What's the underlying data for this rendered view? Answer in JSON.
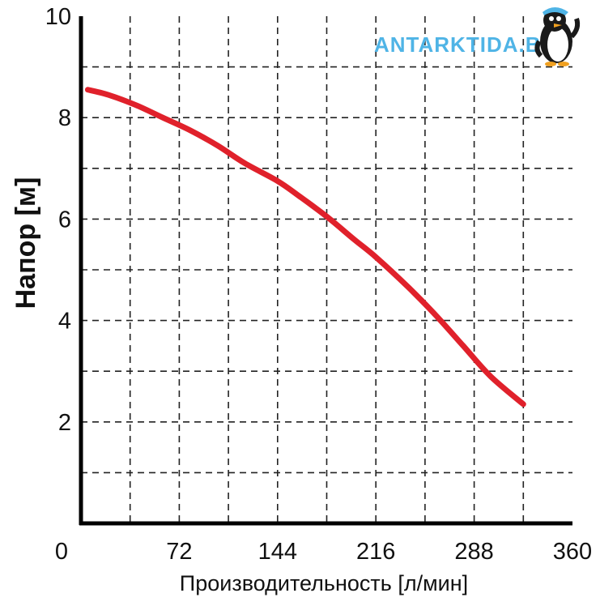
{
  "chart_data": {
    "type": "line",
    "title": "",
    "xlabel": "Производительность [л/мин]",
    "ylabel": "Напор [м]",
    "xlim": [
      0,
      360
    ],
    "ylim": [
      0,
      10
    ],
    "x_ticks": [
      "0",
      "72",
      "144",
      "216",
      "288",
      "360"
    ],
    "y_ticks": [
      "2",
      "4",
      "6",
      "8",
      "10"
    ],
    "grid": true,
    "legend": "none",
    "series": [
      {
        "color": "#e0212b",
        "points": [
          [
            5,
            8.55
          ],
          [
            20,
            8.45
          ],
          [
            40,
            8.25
          ],
          [
            60,
            8.0
          ],
          [
            80,
            7.75
          ],
          [
            100,
            7.45
          ],
          [
            120,
            7.1
          ],
          [
            144,
            6.75
          ],
          [
            160,
            6.45
          ],
          [
            180,
            6.05
          ],
          [
            200,
            5.6
          ],
          [
            216,
            5.25
          ],
          [
            240,
            4.65
          ],
          [
            260,
            4.1
          ],
          [
            280,
            3.5
          ],
          [
            300,
            2.9
          ],
          [
            324,
            2.35
          ]
        ]
      }
    ]
  },
  "watermark": {
    "text": "ANTARKTIDA.BY",
    "color": "#4fb4e6",
    "icon": "penguin-icon"
  }
}
